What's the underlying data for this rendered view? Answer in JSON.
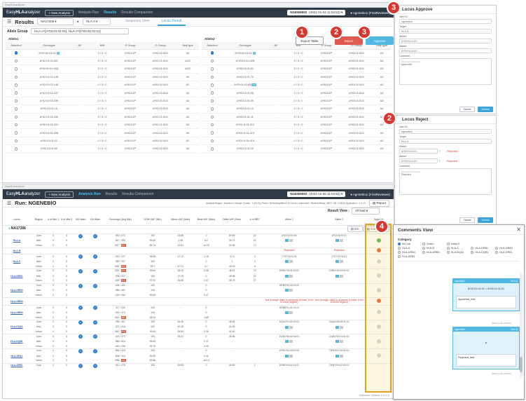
{
  "window1": {
    "chrome_title": "EasyHLAanalyzer",
    "app": {
      "logo_prefix": "Easy",
      "logo_bold": "HLA",
      "logo_suffix": "analyzer",
      "new_analysis": "+ New Analysis",
      "nav": [
        "Analysis Run",
        "Results",
        "Results Comparison"
      ]
    },
    "run_select": {
      "name": "NGENEBIO",
      "date": "(2021-01-04 11:54:52)"
    },
    "user": "ngenebio1 (FirstReviewer)",
    "results_title": "Results",
    "sample": "NA17206",
    "locus": "HLA-A",
    "tabs": [
      "Sequence View",
      "Locus Result"
    ],
    "allele_group_label": "Allele Group",
    "allele_group_value": "HLA-A*[A*02:01:01:01], HLA-A*[A*03:01:01:01]",
    "allele1_title": "Allele1",
    "allele2_title": "Allele2",
    "buttons": {
      "export": "Export Table",
      "reject": "Reject",
      "approve": "Approve"
    },
    "columns": [
      "Selected",
      "Genotype",
      "AF",
      "MM",
      "P Group",
      "G Group",
      "SeqType"
    ],
    "allele1_rows": [
      [
        "A*02:01:01:01",
        "P",
        "-",
        "0 / 0 / 0",
        "A*02:01P",
        "A*02:01:01G",
        "A2"
      ],
      [
        "A*02:01:01:02L",
        "",
        "-",
        "0 / 0 / 0",
        "A*02:01P",
        "A*02:01:01G",
        "A2/2"
      ],
      [
        "A*02:01:01:04Q",
        "",
        "-",
        "0 / 0 / 0",
        "A*02:01P",
        "A*02:01:01G",
        "A2/2"
      ],
      [
        "A*02:01:01:145",
        "",
        "-",
        "0 / 0 / 0",
        "A*02:01P",
        "A*02:01:01G",
        "A2"
      ],
      [
        "A*02:01:01:146",
        "",
        "-",
        "0 / 0 / 0",
        "A*02:01P",
        "A*02:01:01G",
        "A2"
      ],
      [
        "A*02:01:01:157",
        "",
        "-",
        "0 / 0 / 0",
        "A*02:01P",
        "A*02:01:01G",
        "A2"
      ],
      [
        "A*02:01:01:159",
        "",
        "-",
        "0 / 0 / 0",
        "A*02:01P",
        "A*02:01:01G",
        "A2"
      ],
      [
        "A*02:01:01:16",
        "",
        "-",
        "0 / 0 / 0",
        "A*02:01P",
        "A*02:01:01G",
        "A2"
      ],
      [
        "A*02:01:01:160",
        "",
        "-",
        "0 / 0 / 0",
        "A*02:01P",
        "A*02:01:01G",
        "A2"
      ],
      [
        "A*02:01:01:201",
        "",
        "-",
        "0 / 0 / 0",
        "A*02:01P",
        "A*02:01:01G",
        "A2"
      ],
      [
        "A*02:01:01:206",
        "",
        "-",
        "0 / 0 / 0",
        "A*02:01P",
        "A*02:01:01G",
        "A2"
      ],
      [
        "A*02:01:01:21",
        "",
        "-",
        "0 / 0 / 0",
        "A*02:01P",
        "A*02:01:01G",
        "A2"
      ],
      [
        "A*02:01:01:50",
        "",
        "-",
        "0 / 0 / 0",
        "A*02:01P",
        "A*02:01:01G",
        "A2"
      ]
    ],
    "allele2_rows": [
      [
        "A*03:01:01:01",
        "P",
        "-",
        "0 / 0 / 0",
        "A*03:01P",
        "A*03:01:01G",
        "A3"
      ],
      [
        "A*03:01:01:02N",
        "",
        "-",
        "0 / 0 / 0",
        "A*03:01P",
        "A*03:01:01G",
        "A3"
      ],
      [
        "A*03:01:01:21",
        "",
        "-",
        "0 / 0 / 0",
        "A*03:01P",
        "A*03:01:01G",
        "A3"
      ],
      [
        "A*03:01:01:72",
        "",
        "-",
        "0 / 0 / 0",
        "A*03:01P",
        "A*03:01:01G",
        "A3"
      ],
      [
        "A*03:01:01:85",
        "NS",
        "-",
        "0 / 0 / 0",
        "A*03:01P",
        "A*03:01:01G",
        "A3"
      ],
      [
        "A*03:01:01:08",
        "",
        "-",
        "0 / 0 / 0",
        "A*03:01P",
        "A*03:01:01G",
        "A3"
      ],
      [
        "A*03:01:01:09",
        "",
        "-",
        "0 / 0 / 0",
        "A*03:01P",
        "A*03:01:01G",
        "A3"
      ],
      [
        "A*03:01:01:10",
        "",
        "-",
        "0 / 0 / 0",
        "A*03:01P",
        "A*03:01:01G",
        "A3"
      ],
      [
        "A*03:01:01:11",
        "",
        "-",
        "0 / 0 / 0",
        "A*03:01P",
        "A*03:01:01G",
        "A3"
      ],
      [
        "A*03:01:01:112",
        "",
        "-",
        "0 / 0 / 0",
        "A*03:01P",
        "A*03:01:01G",
        "A3"
      ],
      [
        "A*03:01:01:113",
        "",
        "-",
        "0 / 0 / 0",
        "A*03:01P",
        "A*03:01:01G",
        "A3"
      ],
      [
        "A*03:01:01:119",
        "",
        "-",
        "0 / 0 / 0",
        "A*03:01P",
        "A*03:01:01G",
        "A3"
      ],
      [
        "A*03:01:01:12",
        "",
        "-",
        "0 / 0 / 0",
        "A*03:01P",
        "A*03:01:01G",
        "A3"
      ]
    ]
  },
  "approve_panel": {
    "title": "Locus Approve",
    "user_id_label": "User ID",
    "user_id": "ngenebio1",
    "target_label": "Target",
    "target": "HLA-A",
    "allele1_label": "Allele1",
    "allele1": "A*02:01:01:01",
    "allele2_label": "Allele2",
    "allele2": "A*03:01:01:01",
    "comment_label": "Comment",
    "comment_hint": "Recorded Comment",
    "comment": "Approved",
    "cancel": "Cancel",
    "submit": "Submit"
  },
  "reject_panel": {
    "title": "Locus Reject",
    "user_id_label": "User ID",
    "user_id": "ngenebio1",
    "target_label": "Target",
    "target": "HLA-A",
    "allele1_label": "Allele1",
    "allele1": "A*02:01:01:01",
    "allele1_new": "Rejected",
    "allele2_label": "Allele2",
    "allele2": "A*03:01:01:01",
    "allele2_new": "Rejected",
    "comment_label": "Comment",
    "comment_hint": "Recorded Comment",
    "comment": "Rejected",
    "cancel": "Cancel",
    "submit": "Submit"
  },
  "markers": [
    "1",
    "2",
    "3",
    "3",
    "2",
    "4"
  ],
  "window2": {
    "chrome_title": "EasyHLAanalyzer",
    "app": {
      "logo_prefix": "Easy",
      "logo_bold": "HLA",
      "logo_suffix": "analyzer",
      "new_analysis": "+ New Analysis",
      "nav": [
        "Analysis Run",
        "Results",
        "Results Comparison"
      ]
    },
    "run_select": {
      "name": "NGENEBIO",
      "date": "(2021-01-06 11:04:52)"
    },
    "user": "ngenebio1 (FirstReviewer)",
    "run_title": "Run: NGENEBIO",
    "run_info": "Analysis Region : Amplicon | Sample Counts : 1 (0/1/0) | Panel : NGeneAnyWhere 11 Locus | Instrument : Illumina Miseq | IMGT DB : 3.38.0 | Application : 1.2.1.0",
    "report": "Report",
    "result_view_label": "Result View :",
    "result_view": "All field",
    "sample": "NA17206",
    "dc_label": "DC",
    "comments_label": "Comments",
    "headers": [
      "Locus",
      "Region",
      "# of Mbr 1",
      "# of Mbr 2",
      "IVA Warn",
      "GA Warn",
      "Coverage (Avg Min)",
      "HOM VAF (Min)",
      "Minor VAF (Max)",
      "Best VAF (Max)",
      "Delta VAF (Max)",
      "# of NBT",
      "Allele 1",
      "Allele 2",
      "Approve"
    ],
    "loci": [
      {
        "name": "HLA-A",
        "regions": [
          "Core",
          "Add.",
          "Intron"
        ],
        "mbr1": [
          "0",
          "0",
          "0"
        ],
        "mbr2": [
          "0",
          "0",
          "0"
        ],
        "cov": [
          "542 / 474",
          "547 / 283",
          "507 / 175"
        ],
        "hom": [
          "100",
          "99.65",
          "85.74"
        ],
        "minor": [
          "44.96",
          "0.39",
          "42.81"
        ],
        "best": [
          "0",
          "6.2",
          "14.20"
        ],
        "delta": [
          "60.59",
          "39.71",
          "32.96"
        ],
        "nbt": [
          "21",
          "19",
          "7.2"
        ],
        "a1": "A*02:01:01:01",
        "a2": "A*03:01:01:01",
        "status": "ok"
      },
      {
        "name": "HLA-B",
        "regions": [],
        "a1": "Rejected",
        "a2": "Rejected",
        "status": "no"
      },
      {
        "name": "HLA-C",
        "regions": [
          "Core",
          "Add.",
          "Intron"
        ],
        "mbr1": [
          "0",
          "0",
          "0"
        ],
        "mbr2": [
          "0",
          "0",
          "0"
        ],
        "cov": [
          "315 / 227",
          "382 / 207",
          "305 / 156"
        ],
        "hom": [
          "98.85",
          "100",
          "99.7"
        ],
        "minor": [
          "47.12",
          "-",
          "47.01"
        ],
        "best": [
          "1.15",
          "0",
          "0.7"
        ],
        "delta": [
          "47.6",
          "1",
          "45.23"
        ],
        "nbt": [
          "2",
          "2",
          "5"
        ],
        "a1": "C*07:01:01:01",
        "a2": "C*07:02:01:01",
        "status": "na"
      },
      {
        "name": "HLA-DRB1",
        "regions": [
          "Core",
          "Add.",
          "Intron"
        ],
        "mbr1": [
          "0",
          "0",
          "0"
        ],
        "mbr2": [
          "0",
          "0",
          "0"
        ],
        "cov": [
          "252 / 176",
          "293 / 207",
          "445 / 175"
        ],
        "hom": [
          "99.64",
          "100",
          "97.93"
        ],
        "minor": [
          "48.26",
          "47.19",
          "45.56"
        ],
        "best": [
          "0.36",
          "0",
          "2.47"
        ],
        "delta": [
          "46.51",
          "45.96",
          "38.79"
        ],
        "nbt": [
          "19",
          "15",
          "37"
        ],
        "a1": "DRB1*15:01:01:01",
        "a2": "DRB1*15:03:01:01",
        "status": "na"
      },
      {
        "name": "HLA-DRB3",
        "regions": [
          "Core",
          "Add.",
          "Intron"
        ],
        "mbr1": [
          "0",
          "0",
          "0"
        ],
        "mbr2": [
          "0",
          "0",
          "0"
        ],
        "cov": [
          "426 / 402",
          "386 / 481",
          "475 / 354"
        ],
        "hom": [
          "100",
          "100",
          "99.63"
        ],
        "minor": [
          "-",
          "-",
          "-"
        ],
        "best": [
          "0",
          "0",
          "0.37"
        ],
        "delta": [
          "-",
          "-",
          "-"
        ],
        "nbt": [
          "",
          "",
          ""
        ],
        "a1": "DRB3*02:02:01:02",
        "a2": "",
        "status": "na"
      },
      {
        "name": "HLA-DRB4",
        "regions": [],
        "a1": "Not enough data to analysis (Under 100x in exon region)",
        "a2": "Not enough data to analysis (Under 100x in exon region)",
        "status": "no"
      },
      {
        "name": "HLA-DRB5",
        "regions": [
          "Core",
          "Add.",
          "Intron"
        ],
        "mbr1": [
          "0",
          "0",
          "0"
        ],
        "mbr2": [
          "0",
          "0",
          "0"
        ],
        "cov": [
          "377 / 200",
          "351 / 473",
          "553 / 185"
        ],
        "hom": [
          "100",
          "100",
          "98.11"
        ],
        "minor": [
          "-",
          "-",
          "-"
        ],
        "best": [
          "0",
          "0",
          "1.89"
        ],
        "delta": [
          "-",
          "-",
          "-"
        ],
        "nbt": [
          "",
          "",
          ""
        ],
        "a1": "DRB5*01:01:01:01",
        "a2": "",
        "status": "na"
      },
      {
        "name": "HLA-DQA1",
        "regions": [
          "Core",
          "Add.",
          "Intron"
        ],
        "mbr1": [
          "0",
          "0",
          "0"
        ],
        "mbr2": [
          "0",
          "0",
          "0"
        ],
        "cov": [
          "296 / 267",
          "327 / 218",
          "381 / 173"
        ],
        "hom": [
          "100",
          "100",
          "99.64"
        ],
        "minor": [
          "46.49",
          "40.45",
          "45.84"
        ],
        "best": [
          "0",
          "0",
          "0.36"
        ],
        "delta": [
          "46.64",
          "44.35",
          "42.40"
        ],
        "nbt": [
          "",
          "",
          ""
        ],
        "a1": "DQA1*01:02:01:01",
        "a2": "DQA1*05:05:01:01",
        "status": "na"
      },
      {
        "name": "HLA-DQB1",
        "regions": [
          "Core",
          "Add.",
          "Intron"
        ],
        "mbr1": [
          "0",
          "0",
          "0"
        ],
        "mbr2": [
          "0",
          "0",
          "0"
        ],
        "cov": [
          "422 / 379",
          "550 / 513",
          "440 / 296"
        ],
        "hom": [
          "100",
          "99.63",
          "99.70"
        ],
        "minor": [
          "45.23",
          "-",
          "-"
        ],
        "best": [
          "0",
          "0.37",
          "0.30"
        ],
        "delta": [
          "45.36",
          "-",
          "-"
        ],
        "nbt": [
          "",
          "",
          ""
        ],
        "a1": "DQB1*06:02:01:01",
        "a2": "DQB1*03:01:01:01",
        "status": "na"
      },
      {
        "name": "HLA-DPA1",
        "regions": [
          "Core",
          "Add.",
          "Intron"
        ],
        "mbr1": [
          "0",
          "0",
          "0"
        ],
        "mbr2": [
          "0",
          "0",
          "0"
        ],
        "cov": [
          "584 / 424",
          "606 / 314",
          "398 / 135"
        ],
        "hom": [
          "100",
          "99.59",
          "83.86"
        ],
        "minor": [
          "-",
          "-",
          "-"
        ],
        "best": [
          "0",
          "0.41",
          "16.14"
        ],
        "delta": [
          "-",
          "-",
          "-"
        ],
        "nbt": [
          "",
          "",
          ""
        ],
        "a1": "DPA1*01:03:01:05",
        "a2": "DPA1*01:03:01:01",
        "status": "na"
      },
      {
        "name": "HLA-DPB1",
        "regions": [
          "Core"
        ],
        "mbr1": [
          "0"
        ],
        "mbr2": [
          "0"
        ],
        "cov": [
          "311 / 278"
        ],
        "hom": [
          "100"
        ],
        "minor": [
          "49.83"
        ],
        "best": [
          "0"
        ],
        "delta": [
          "49.83"
        ],
        "nbt": [
          "1"
        ],
        "a1": "DPB1*04:01:01:01",
        "a2": "DPB1*04:02:01:01",
        "status": "na"
      }
    ],
    "software_version": "Software Version 1.2.1.0"
  },
  "comments_view": {
    "title": "Comments View",
    "category_label": "Category",
    "options": [
      "All Loci",
      "Class I",
      "Class II",
      "HLA-A",
      "HLA-B",
      "HLA-C",
      "HLA-DRB1",
      "HLA-DRB3",
      "HLA-DRB4",
      "HLA-DRB5",
      "HLA-DQA1",
      "HLA-DQB1",
      "HLA-DPA1",
      "HLA-DPB1"
    ],
    "cards": [
      {
        "user": "ngenebio1",
        "locus": "HLA-A",
        "alleles": "A*02:01:01:01 × A*03:01:01:01",
        "comment": "Approved_test",
        "time": "2021-01-06 12:34:56"
      },
      {
        "user": "ngenebio1",
        "locus": "HLA-B",
        "alleles": "×",
        "comment": "Rejected_test",
        "time": "2021-01-06 12:34:56"
      }
    ]
  }
}
